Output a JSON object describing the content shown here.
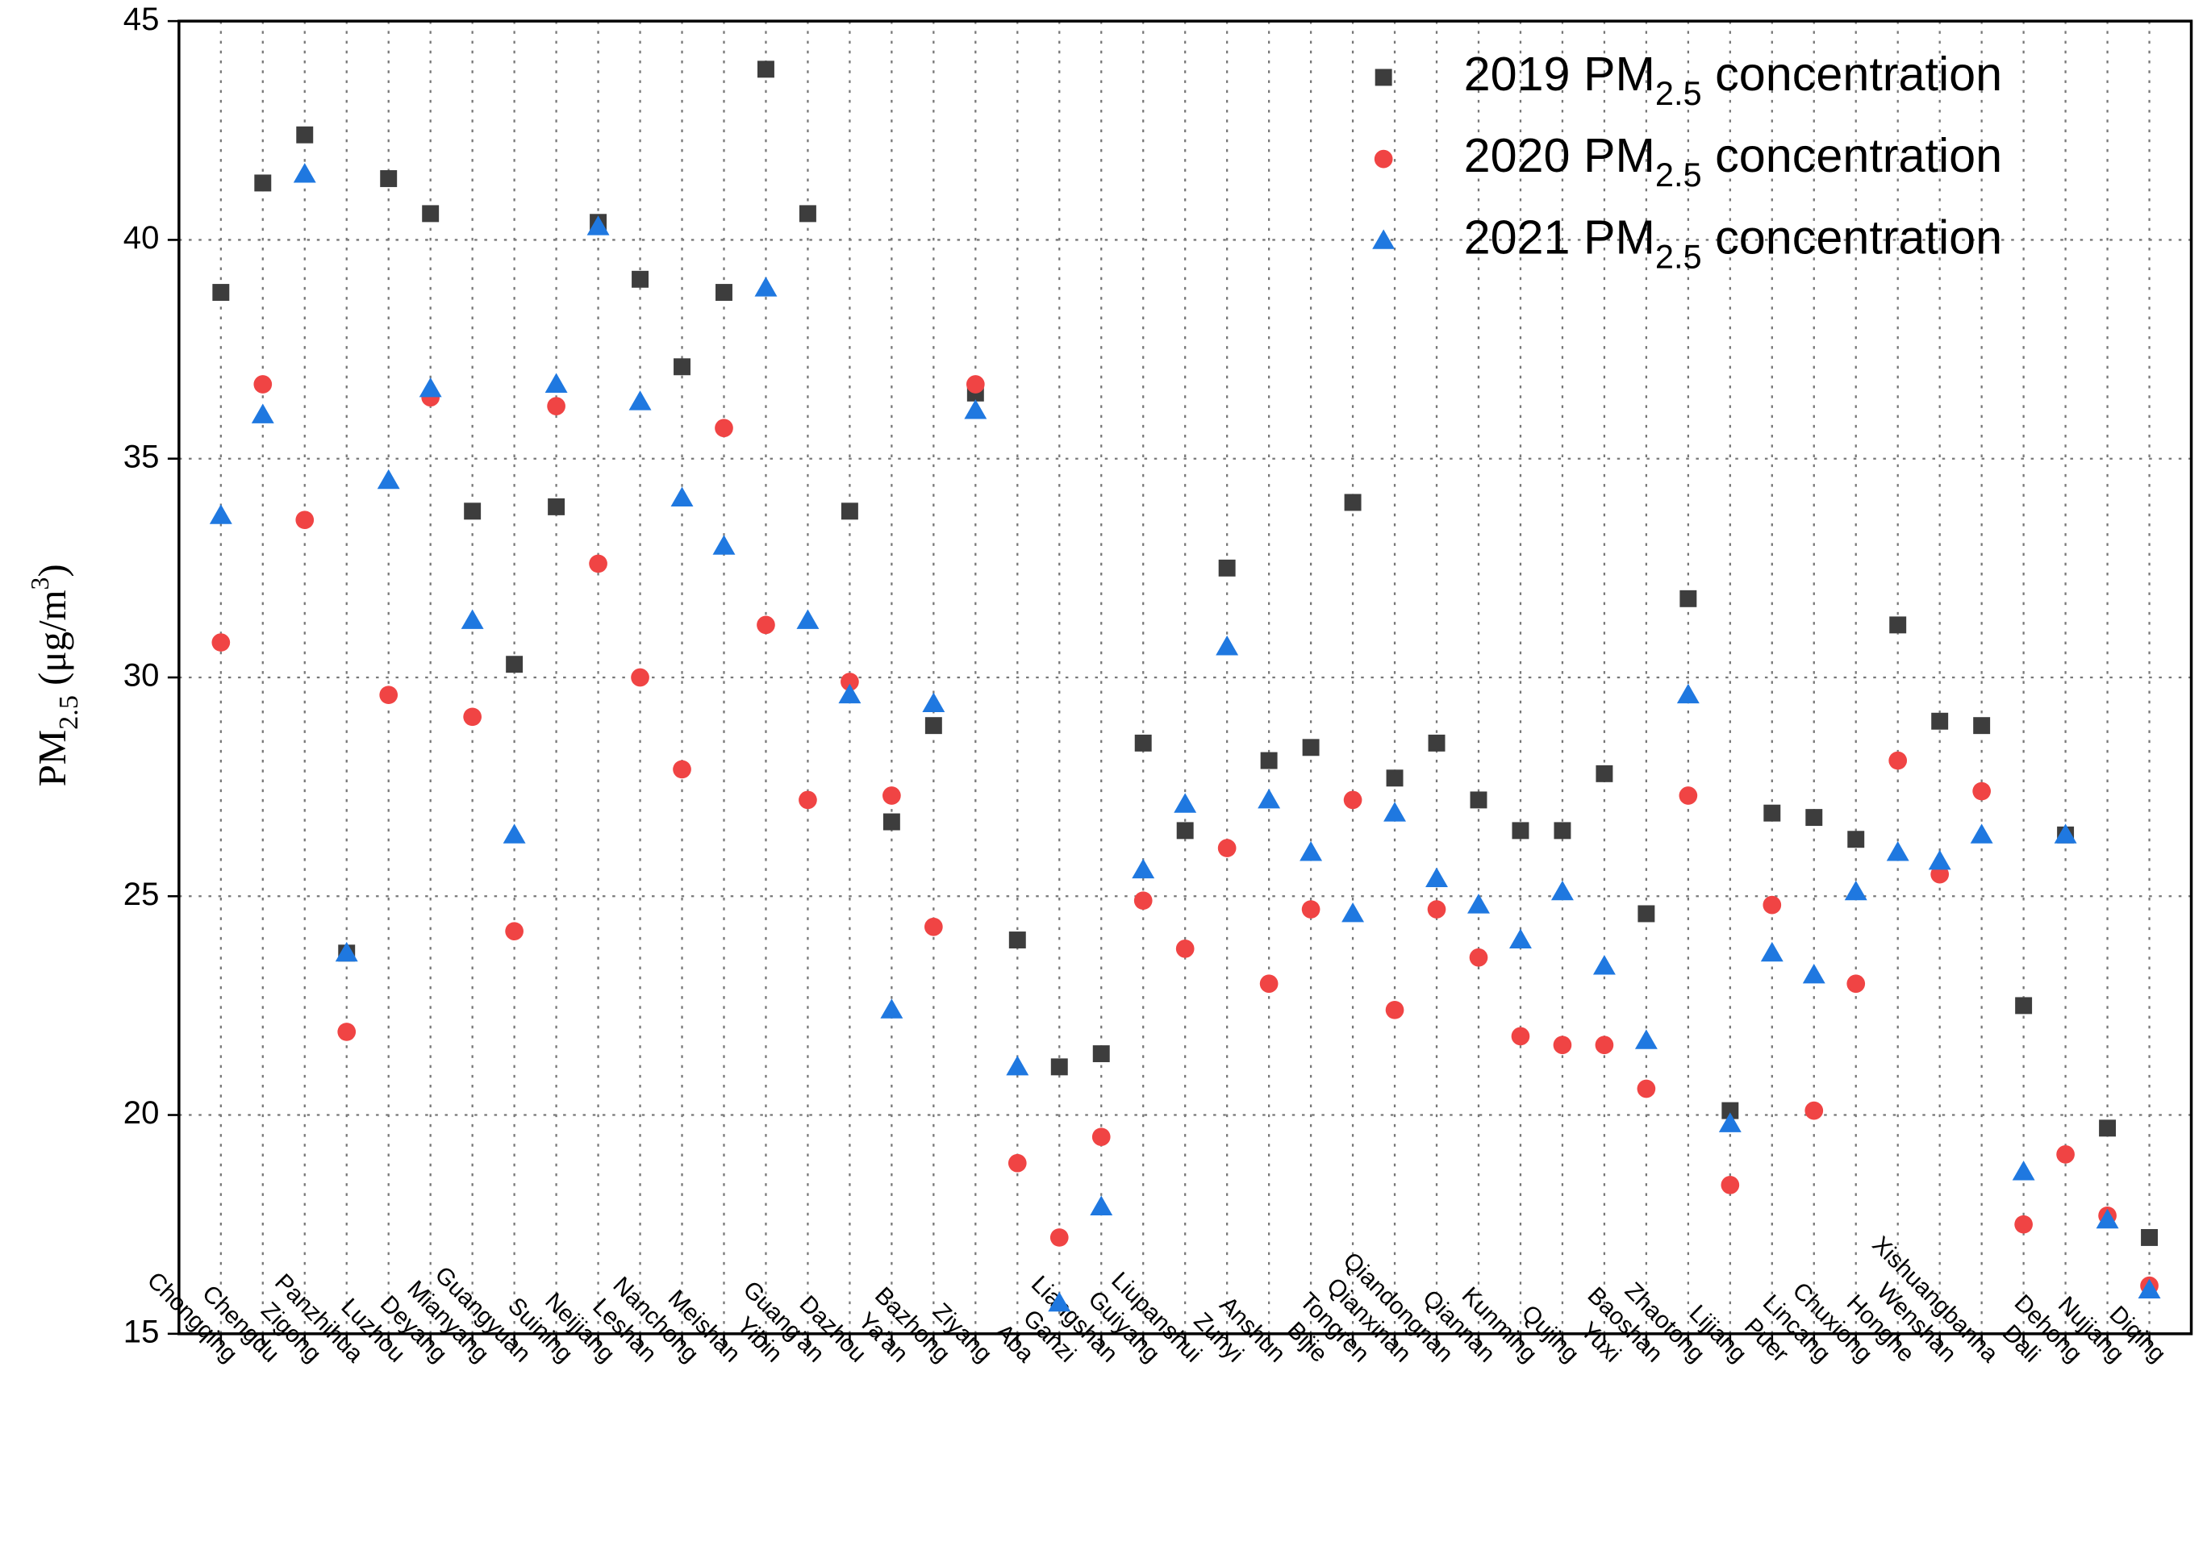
{
  "chart_data": {
    "type": "scatter",
    "ylabel": "PM2.5 (μg/m3)",
    "categories": [
      "Chongqing",
      "Chengdu",
      "Zigong",
      "Panzhihua",
      "Luzhou",
      "Deyang",
      "Mianyang",
      "Guangyuan",
      "Suining",
      "Neijiang",
      "Leshan",
      "Nanchong",
      "Meishan",
      "Yibin",
      "Guang'an",
      "Dazhou",
      "Ya'an",
      "Bazhong",
      "Ziyang",
      "Aba",
      "Ganzi",
      "Liangshan",
      "Guiyang",
      "Liupanshui",
      "Zunyi",
      "Anshun",
      "Bijie",
      "Tongren",
      "Qianxinan",
      "Qiandongnan",
      "Qiannan",
      "Kunming",
      "Qujing",
      "Yuxi",
      "Baoshan",
      "Zhaotong",
      "Lijiang",
      "Puer",
      "Lincang",
      "Chuxiong",
      "Honghe",
      "Wenshan",
      "Xishuangbanna",
      "Dali",
      "Dehong",
      "Nujiang",
      "Diqing"
    ],
    "series": [
      {
        "name": "2019 PM2.5 concentration",
        "color": "#3d3d3d",
        "marker": "square",
        "values": [
          38.8,
          41.3,
          42.4,
          23.7,
          41.4,
          40.6,
          33.8,
          30.3,
          33.9,
          40.4,
          39.1,
          37.1,
          38.8,
          43.9,
          40.6,
          33.8,
          26.7,
          28.9,
          36.5,
          24.0,
          21.1,
          21.4,
          28.5,
          26.5,
          32.5,
          28.1,
          28.4,
          34.0,
          27.7,
          28.5,
          27.2,
          26.5,
          26.5,
          27.8,
          24.6,
          31.8,
          20.1,
          26.9,
          26.8,
          26.3,
          31.2,
          29.0,
          28.9,
          22.5,
          26.4,
          19.7,
          17.2
        ]
      },
      {
        "name": "2020 PM2.5 concentration",
        "color": "#f04444",
        "marker": "circle",
        "values": [
          30.8,
          36.7,
          33.6,
          21.9,
          29.6,
          36.4,
          29.1,
          24.2,
          36.2,
          32.6,
          30.0,
          27.9,
          35.7,
          31.2,
          27.2,
          29.9,
          27.3,
          24.3,
          36.7,
          18.9,
          17.2,
          19.5,
          24.9,
          23.8,
          26.1,
          23.0,
          24.7,
          27.2,
          22.4,
          24.7,
          23.6,
          21.8,
          21.6,
          21.6,
          20.6,
          27.3,
          18.4,
          24.8,
          20.1,
          23.0,
          28.1,
          25.5,
          27.4,
          17.5,
          19.1,
          17.7,
          16.1
        ]
      },
      {
        "name": "2021 PM2.5 concentration",
        "color": "#1f78e0",
        "marker": "triangle",
        "values": [
          33.7,
          36.0,
          41.5,
          23.7,
          34.5,
          36.6,
          31.3,
          26.4,
          36.7,
          40.3,
          36.3,
          34.1,
          33.0,
          38.9,
          31.3,
          29.6,
          22.4,
          29.4,
          36.1,
          21.1,
          15.7,
          17.9,
          25.6,
          27.1,
          30.7,
          27.2,
          26.0,
          24.6,
          26.9,
          25.4,
          24.8,
          24.0,
          25.1,
          23.4,
          21.7,
          29.6,
          19.8,
          23.7,
          23.2,
          25.1,
          26.0,
          25.8,
          26.4,
          18.7,
          26.4,
          17.6,
          16.0
        ]
      }
    ],
    "ylim": [
      15,
      45
    ],
    "yticks": [
      15,
      20,
      25,
      30,
      35,
      40,
      45
    ],
    "grid": true,
    "legend": "upper right"
  }
}
